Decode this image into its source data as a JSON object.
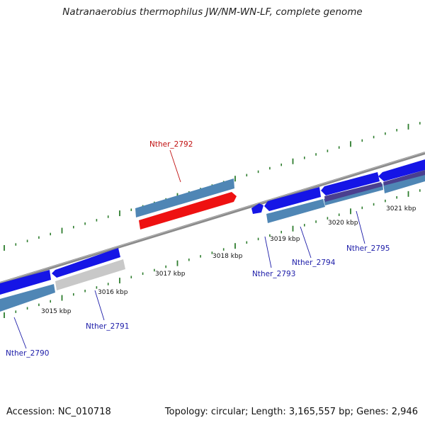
{
  "title": "Natranaerobius thermophilus JW/NM-WN-LF, complete genome",
  "footer": {
    "accession": "Accession: NC_010718",
    "summary": "Topology: circular; Length: 3,165,557 bp; Genes: 2,946"
  },
  "colors": {
    "backbone": "#8a8a8a",
    "tick": "#2e7d2e",
    "cds_blue": "#1515e6",
    "gene_steel": "#4f86b5",
    "rna_gray": "#c8c8c8",
    "highlight_red": "#ee1111",
    "dark_purple": "#4a3f8f",
    "label_blue": "#1b1ba8",
    "label_red": "#c01010"
  },
  "kbp_labels": [
    "3015 kbp",
    "3016 kbp",
    "3017 kbp",
    "3018 kbp",
    "3019 kbp",
    "3020 kbp",
    "3021 kbp"
  ],
  "gene_labels": [
    {
      "name": "Nther_2790",
      "highlight": false
    },
    {
      "name": "Nther_2791",
      "highlight": false
    },
    {
      "name": "Nther_2792",
      "highlight": true
    },
    {
      "name": "Nther_2793",
      "highlight": false
    },
    {
      "name": "Nther_2794",
      "highlight": false
    },
    {
      "name": "Nther_2795",
      "highlight": false
    }
  ]
}
